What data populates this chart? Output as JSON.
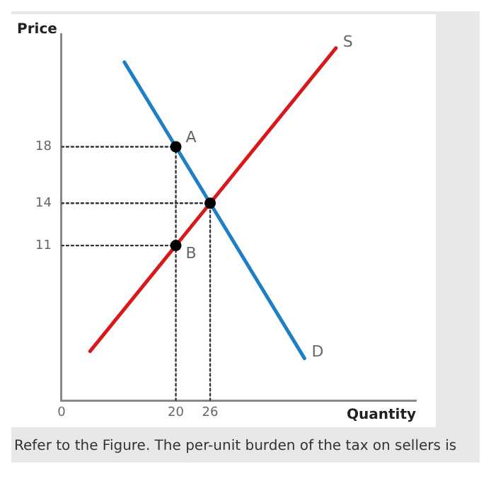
{
  "chart_data": {
    "type": "line",
    "xlabel": "Quantity",
    "ylabel": "Price",
    "xlim": [
      0,
      62
    ],
    "ylim": [
      0,
      26
    ],
    "xticks": [
      0,
      20,
      26
    ],
    "yticks": [
      11,
      14,
      18
    ],
    "grid": false,
    "legend": false,
    "marker": "none",
    "series": [
      {
        "name": "S",
        "color": "#d7191c",
        "x": [
          5,
          20,
          26,
          48
        ],
        "values": [
          3.5,
          11,
          14,
          25
        ]
      },
      {
        "name": "D",
        "color": "#1f7fc4",
        "x": [
          11,
          20,
          26,
          42.5
        ],
        "values": [
          24,
          18,
          14,
          3
        ]
      },
      {
        "type": "line",
        "color": "#333333",
        "line_style": "dotted",
        "x": [
          0,
          20
        ],
        "values": [
          18,
          18
        ]
      },
      {
        "type": "line",
        "color": "#333333",
        "line_style": "dotted",
        "x": [
          0,
          26
        ],
        "values": [
          14,
          14
        ]
      },
      {
        "type": "line",
        "color": "#333333",
        "line_style": "dotted",
        "x": [
          0,
          20
        ],
        "values": [
          11,
          11
        ]
      },
      {
        "type": "line",
        "color": "#333333",
        "line_style": "dotted",
        "x": [
          20,
          20
        ],
        "values": [
          0,
          18
        ]
      },
      {
        "type": "line",
        "color": "#333333",
        "line_style": "dotted",
        "x": [
          26,
          26
        ],
        "values": [
          0,
          14
        ]
      },
      {
        "type": "scatter",
        "color": "#000000",
        "marker": "circle",
        "x": [
          20,
          26,
          20
        ],
        "values": [
          18,
          14,
          11
        ]
      }
    ],
    "annotations": [
      {
        "text": "A",
        "x": 20,
        "y": 18
      },
      {
        "text": "B",
        "x": 20,
        "y": 11
      },
      "Refer to the Figure. The per-unit burden of the tax on sellers is"
    ]
  }
}
